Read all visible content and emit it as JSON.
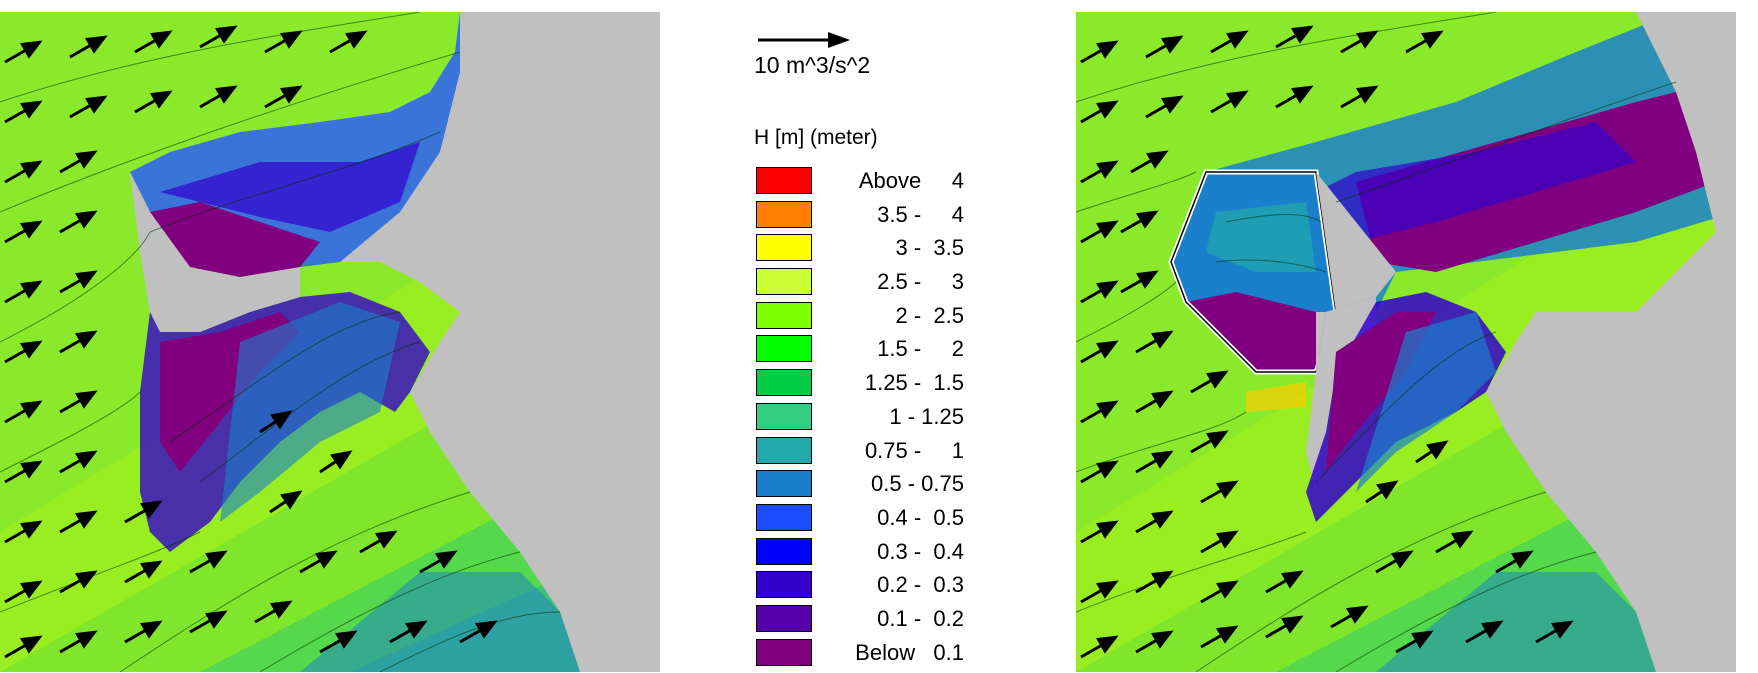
{
  "scale_arrow": {
    "label": "10 m^3/s^2"
  },
  "legend": {
    "title": "H [m] (meter)",
    "items": [
      {
        "label": "Above     4",
        "color": "#ff0000"
      },
      {
        "label": "3.5 -     4",
        "color": "#ff8000"
      },
      {
        "label": "3 -  3.5",
        "color": "#ffff00"
      },
      {
        "label": "2.5 -     3",
        "color": "#ccff33"
      },
      {
        "label": "2 -  2.5",
        "color": "#80ff00"
      },
      {
        "label": "1.5 -     2",
        "color": "#00ff00"
      },
      {
        "label": "1.25 -  1.5",
        "color": "#00cc44"
      },
      {
        "label": "1 - 1.25",
        "color": "#33cc80"
      },
      {
        "label": "0.75 -     1",
        "color": "#22aaaa"
      },
      {
        "label": "0.5 - 0.75",
        "color": "#1a80cc"
      },
      {
        "label": "0.4 -  0.5",
        "color": "#1a4dff"
      },
      {
        "label": "0.3 -  0.4",
        "color": "#0000ff"
      },
      {
        "label": "0.2 -  0.3",
        "color": "#3300cc"
      },
      {
        "label": "0.1 -  0.2",
        "color": "#5500aa"
      },
      {
        "label": "Below   0.1",
        "color": "#800080"
      }
    ]
  },
  "colors": {
    "land": "#c0c0c0",
    "background_sea": "#99ff33",
    "vectors": "#000000"
  }
}
